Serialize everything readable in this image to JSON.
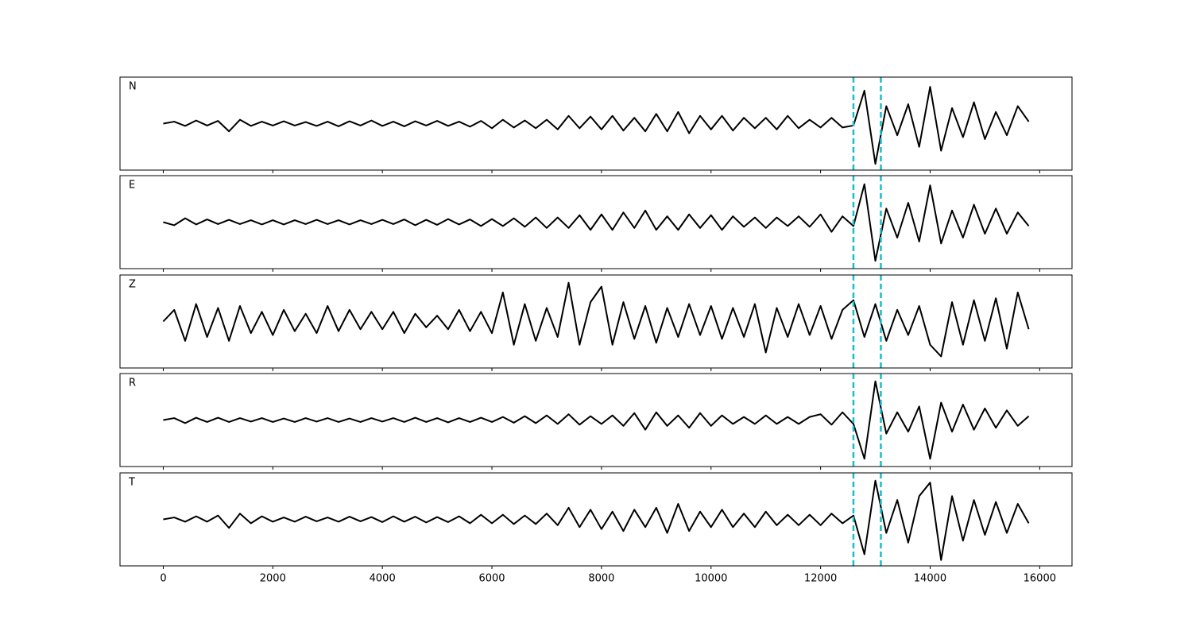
{
  "chart_data": {
    "type": "line",
    "x": [
      0,
      200,
      400,
      600,
      800,
      1000,
      1200,
      1400,
      1600,
      1800,
      2000,
      2200,
      2400,
      2600,
      2800,
      3000,
      3200,
      3400,
      3600,
      3800,
      4000,
      4200,
      4400,
      4600,
      4800,
      5000,
      5200,
      5400,
      5600,
      5800,
      6000,
      6200,
      6400,
      6600,
      6800,
      7000,
      7200,
      7400,
      7600,
      7800,
      8000,
      8200,
      8400,
      8600,
      8800,
      9000,
      9200,
      9400,
      9600,
      9800,
      10000,
      10200,
      10400,
      10600,
      10800,
      11000,
      11200,
      11400,
      11600,
      11800,
      12000,
      12200,
      12400,
      12600,
      12800,
      13000,
      13200,
      13400,
      13600,
      13800,
      14000,
      14200,
      14400,
      14600,
      14800,
      15000,
      15200,
      15400,
      15600,
      15800
    ],
    "series": [
      {
        "name": "N",
        "color": "#000000",
        "values": [
          0,
          0.05,
          -0.06,
          0.08,
          -0.05,
          0.07,
          -0.2,
          0.1,
          -0.06,
          0.05,
          -0.05,
          0.06,
          -0.05,
          0.04,
          -0.06,
          0.05,
          -0.07,
          0.06,
          -0.05,
          0.08,
          -0.06,
          0.05,
          -0.07,
          0.06,
          -0.05,
          0.07,
          -0.06,
          0.05,
          -0.08,
          0.07,
          -0.12,
          0.1,
          -0.1,
          0.08,
          -0.12,
          0.1,
          -0.15,
          0.2,
          -0.12,
          0.18,
          -0.15,
          0.2,
          -0.18,
          0.15,
          -0.2,
          0.25,
          -0.2,
          0.3,
          -0.25,
          0.2,
          -0.15,
          0.2,
          -0.18,
          0.15,
          -0.12,
          0.15,
          -0.15,
          0.2,
          -0.12,
          0.1,
          -0.1,
          0.15,
          -0.1,
          -0.05,
          0.85,
          -1.04,
          0.45,
          -0.3,
          0.5,
          -0.6,
          0.95,
          -0.7,
          0.4,
          -0.35,
          0.55,
          -0.4,
          0.3,
          -0.3,
          0.45,
          0.05
        ]
      },
      {
        "name": "E",
        "color": "#000000",
        "values": [
          0,
          -0.08,
          0.1,
          -0.06,
          0.07,
          -0.05,
          0.06,
          -0.05,
          0.05,
          -0.06,
          0.05,
          -0.06,
          0.05,
          -0.05,
          0.06,
          -0.05,
          0.05,
          -0.06,
          0.05,
          -0.05,
          0.06,
          -0.05,
          0.07,
          -0.08,
          0.06,
          -0.07,
          0.08,
          -0.06,
          0.07,
          -0.1,
          0.08,
          -0.1,
          0.1,
          -0.12,
          0.12,
          -0.15,
          0.12,
          -0.15,
          0.18,
          -0.2,
          0.2,
          -0.2,
          0.25,
          -0.15,
          0.3,
          -0.2,
          0.15,
          -0.2,
          0.2,
          -0.15,
          0.18,
          -0.2,
          0.15,
          -0.12,
          0.12,
          -0.15,
          0.12,
          -0.1,
          0.15,
          -0.12,
          0.2,
          -0.25,
          0.15,
          -0.1,
          0.98,
          -1.0,
          0.35,
          -0.4,
          0.5,
          -0.5,
          0.95,
          -0.55,
          0.3,
          -0.4,
          0.45,
          -0.3,
          0.35,
          -0.3,
          0.25,
          -0.1
        ]
      },
      {
        "name": "Z",
        "color": "#000000",
        "values": [
          0,
          0.3,
          -0.5,
          0.45,
          -0.4,
          0.35,
          -0.5,
          0.4,
          -0.3,
          0.25,
          -0.35,
          0.3,
          -0.25,
          0.2,
          -0.3,
          0.4,
          -0.25,
          0.3,
          -0.2,
          0.25,
          -0.2,
          0.25,
          -0.3,
          0.2,
          -0.15,
          0.15,
          -0.2,
          0.3,
          -0.25,
          0.25,
          -0.3,
          0.75,
          -0.6,
          0.45,
          -0.5,
          0.35,
          -0.4,
          1.0,
          -0.6,
          0.5,
          0.9,
          -0.6,
          0.5,
          -0.45,
          0.4,
          -0.55,
          0.35,
          -0.4,
          0.45,
          -0.35,
          0.4,
          -0.45,
          0.35,
          -0.4,
          0.45,
          -0.8,
          0.35,
          -0.4,
          0.45,
          -0.35,
          0.4,
          -0.45,
          0.3,
          0.55,
          -0.4,
          0.45,
          -0.5,
          0.3,
          -0.35,
          0.4,
          -0.6,
          -0.9,
          0.5,
          -0.6,
          0.55,
          -0.5,
          0.6,
          -0.7,
          0.75,
          -0.2
        ]
      },
      {
        "name": "R",
        "color": "#000000",
        "values": [
          0,
          0.05,
          -0.08,
          0.06,
          -0.05,
          0.06,
          -0.05,
          0.05,
          -0.04,
          0.05,
          -0.05,
          0.04,
          -0.05,
          0.05,
          -0.04,
          0.05,
          -0.05,
          0.04,
          -0.05,
          0.05,
          -0.04,
          0.05,
          -0.05,
          0.06,
          -0.05,
          0.05,
          -0.06,
          0.05,
          -0.05,
          0.06,
          -0.05,
          0.08,
          -0.07,
          0.1,
          -0.08,
          0.12,
          -0.1,
          0.15,
          -0.12,
          0.1,
          -0.1,
          0.12,
          -0.15,
          0.18,
          -0.25,
          0.2,
          -0.15,
          0.12,
          -0.2,
          0.18,
          -0.15,
          0.12,
          -0.1,
          0.08,
          -0.1,
          0.12,
          -0.1,
          0.08,
          -0.1,
          0.08,
          0.15,
          -0.12,
          0.2,
          -0.1,
          -1.0,
          1.0,
          -0.35,
          0.2,
          -0.3,
          0.35,
          -1.0,
          0.45,
          -0.3,
          0.4,
          -0.25,
          0.3,
          -0.2,
          0.25,
          -0.15,
          0.1
        ]
      },
      {
        "name": "T",
        "color": "#000000",
        "values": [
          0,
          0.05,
          -0.06,
          0.08,
          -0.06,
          0.1,
          -0.22,
          0.15,
          -0.1,
          0.08,
          -0.06,
          0.05,
          -0.06,
          0.07,
          -0.05,
          0.05,
          -0.06,
          0.07,
          -0.05,
          0.06,
          -0.07,
          0.08,
          -0.06,
          0.07,
          -0.08,
          0.06,
          -0.07,
          0.08,
          -0.1,
          0.12,
          -0.1,
          0.12,
          -0.12,
          0.1,
          -0.12,
          0.15,
          -0.15,
          0.3,
          -0.2,
          0.25,
          -0.25,
          0.2,
          -0.3,
          0.25,
          -0.2,
          0.3,
          -0.35,
          0.4,
          -0.3,
          0.2,
          -0.2,
          0.25,
          -0.2,
          0.15,
          -0.2,
          0.2,
          -0.15,
          0.12,
          -0.15,
          0.12,
          -0.15,
          0.15,
          -0.1,
          0.1,
          -0.9,
          1.0,
          -0.35,
          0.5,
          -0.6,
          0.6,
          0.95,
          -1.05,
          0.6,
          -0.55,
          0.5,
          -0.4,
          0.45,
          -0.35,
          0.4,
          -0.1
        ]
      }
    ],
    "xlim": [
      -790,
      16590
    ],
    "xticks": [
      0,
      2000,
      4000,
      6000,
      8000,
      10000,
      12000,
      14000,
      16000
    ],
    "ylim": [
      -1.2,
      1.2
    ],
    "vlines": [
      12600,
      13100
    ],
    "vline_color": "#17becf"
  }
}
